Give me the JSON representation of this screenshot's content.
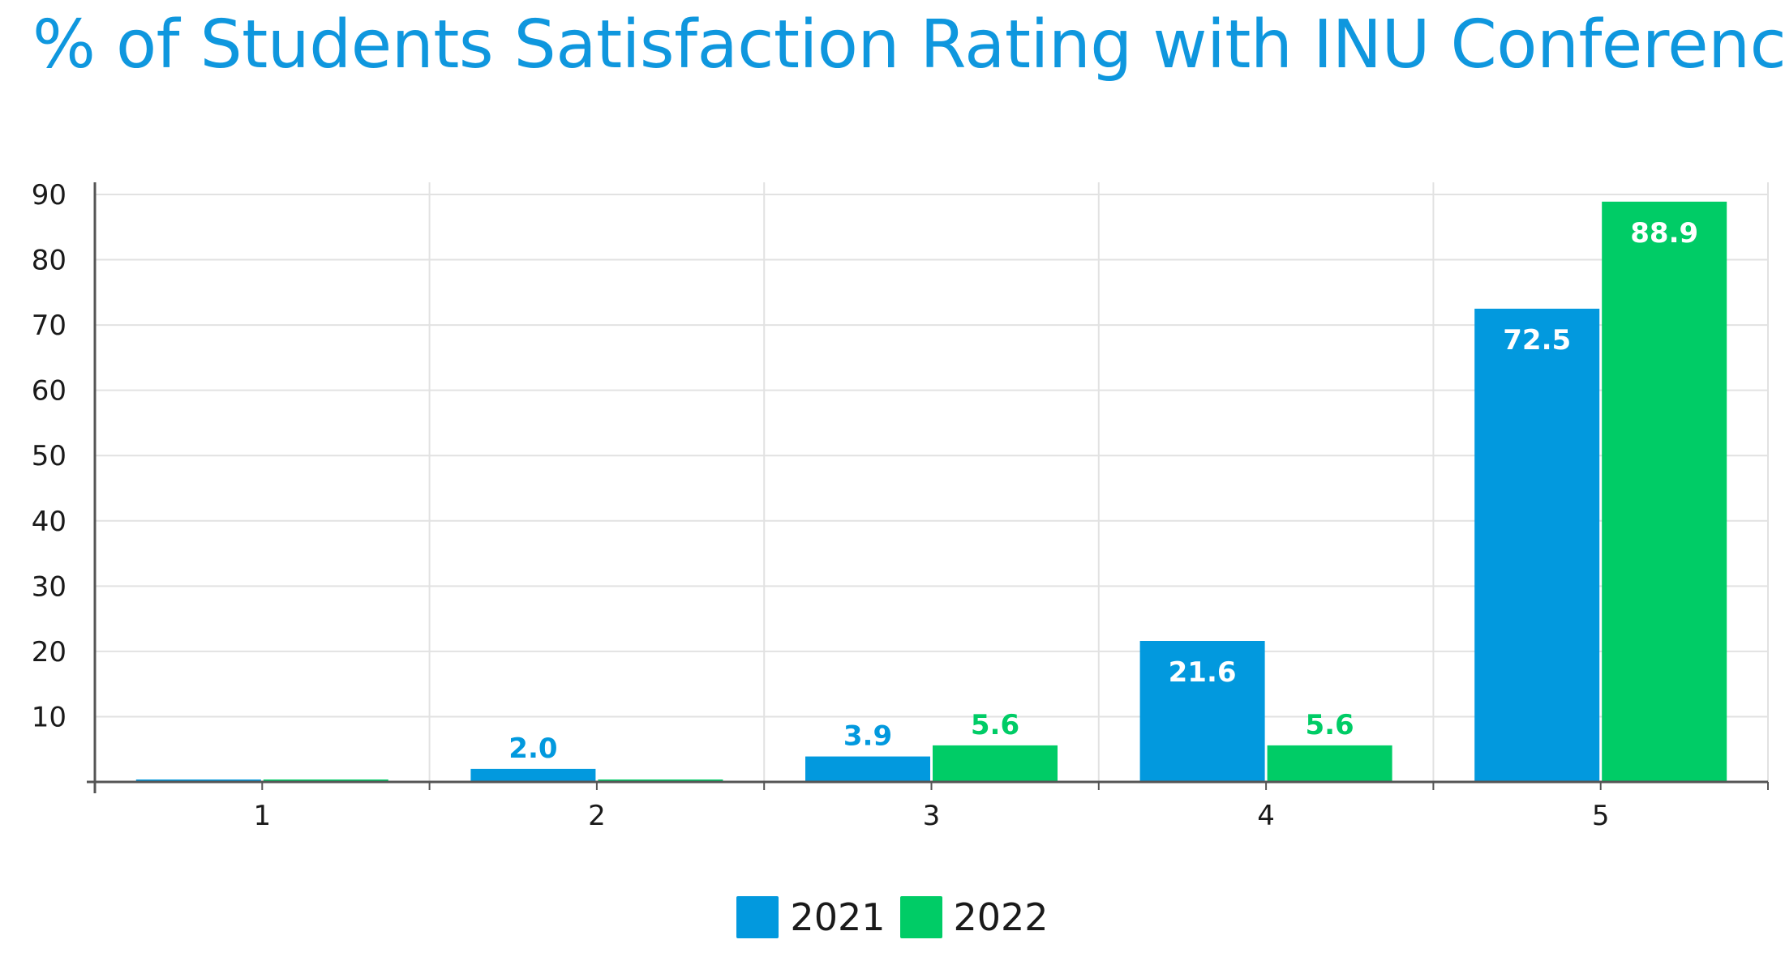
{
  "chart_data": {
    "type": "bar",
    "title": "% of Students Satisfaction Rating with INU Conferences",
    "xlabel": "",
    "ylabel": "",
    "categories": [
      "1",
      "2",
      "3",
      "4",
      "5"
    ],
    "series": [
      {
        "name": "2021",
        "color": "#0299de",
        "values": [
          0,
          2.0,
          3.9,
          21.6,
          72.5
        ],
        "labels": [
          "",
          "2.0",
          "3.9",
          "21.6",
          "72.5"
        ]
      },
      {
        "name": "2022",
        "color": "#00cc66",
        "values": [
          0,
          0,
          5.6,
          5.6,
          88.9
        ],
        "labels": [
          "",
          "",
          "5.6",
          "5.6",
          "88.9"
        ]
      }
    ],
    "ylim": [
      0,
      90
    ],
    "yticks": [
      "10",
      "20",
      "30",
      "40",
      "50",
      "60",
      "70",
      "80",
      "90"
    ],
    "grid": true,
    "legend": "bottom-center"
  }
}
